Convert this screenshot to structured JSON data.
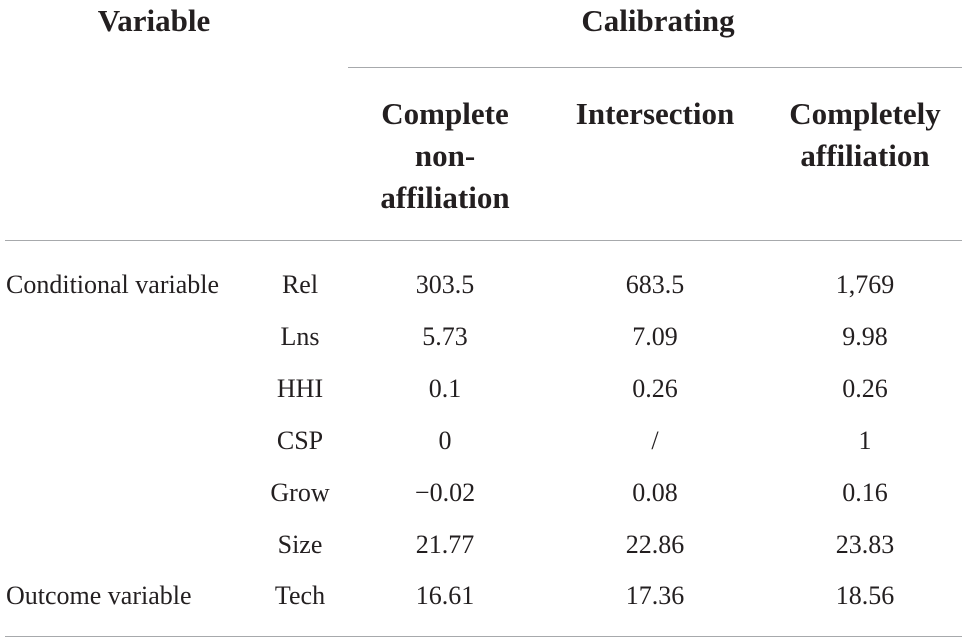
{
  "header": {
    "variable": "Variable",
    "calibrating": "Calibrating",
    "sub_columns": [
      {
        "lines": [
          "Complete",
          "non-",
          "affiliation"
        ]
      },
      {
        "lines": [
          "Intersection"
        ]
      },
      {
        "lines": [
          "Completely",
          "affiliation"
        ]
      }
    ]
  },
  "rows": [
    {
      "group": "Conditional variable",
      "name": "Rel",
      "values": [
        "303.5",
        "683.5",
        "1,769"
      ]
    },
    {
      "group": "",
      "name": "Lns",
      "values": [
        "5.73",
        "7.09",
        "9.98"
      ]
    },
    {
      "group": "",
      "name": "HHI",
      "values": [
        "0.1",
        "0.26",
        "0.26"
      ]
    },
    {
      "group": "",
      "name": "CSP",
      "values": [
        "0",
        "/",
        "1"
      ]
    },
    {
      "group": "",
      "name": "Grow",
      "values": [
        "−0.02",
        "0.08",
        "0.16"
      ]
    },
    {
      "group": "",
      "name": "Size",
      "values": [
        "21.77",
        "22.86",
        "23.83"
      ]
    },
    {
      "group": "Outcome variable",
      "name": "Tech",
      "values": [
        "16.61",
        "17.36",
        "18.56"
      ]
    }
  ]
}
